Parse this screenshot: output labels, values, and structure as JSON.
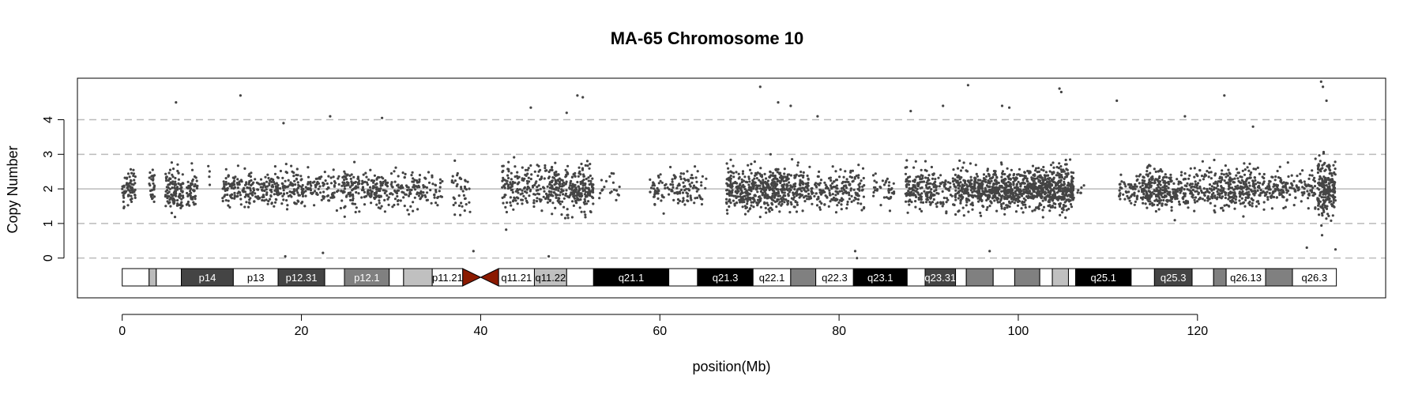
{
  "chart_data": {
    "type": "scatter",
    "title": "MA-65  Chromosome 10",
    "xlabel": "position(Mb)",
    "ylabel": "Copy Number",
    "xlim": [
      -5,
      141
    ],
    "ylim": [
      -1.15,
      5.2
    ],
    "xticks": [
      0,
      20,
      40,
      60,
      80,
      100,
      120
    ],
    "yticks": [
      0,
      1,
      2,
      3,
      4
    ],
    "reference_line": 2,
    "dashed_lines": [
      0,
      1,
      3,
      4
    ],
    "point_color": "#444444",
    "ideogram": {
      "length_mb": 135.5,
      "centromere": [
        38.0,
        42.0
      ],
      "centromere_color": "#8b1a00",
      "bands": [
        {
          "start": 0.0,
          "end": 3.0,
          "color": "#ffffff",
          "label": ""
        },
        {
          "start": 3.0,
          "end": 3.8,
          "color": "#bbbbbb",
          "label": ""
        },
        {
          "start": 3.8,
          "end": 6.6,
          "color": "#ffffff",
          "label": ""
        },
        {
          "start": 6.6,
          "end": 12.4,
          "color": "#444444",
          "label": "p14"
        },
        {
          "start": 12.4,
          "end": 17.4,
          "color": "#ffffff",
          "label": "p13"
        },
        {
          "start": 17.4,
          "end": 22.6,
          "color": "#444444",
          "label": "p12.31"
        },
        {
          "start": 22.6,
          "end": 24.8,
          "color": "#ffffff",
          "label": ""
        },
        {
          "start": 24.8,
          "end": 29.8,
          "color": "#808080",
          "label": "p12.1"
        },
        {
          "start": 29.8,
          "end": 31.4,
          "color": "#ffffff",
          "label": ""
        },
        {
          "start": 31.4,
          "end": 34.6,
          "color": "#c0c0c0",
          "label": ""
        },
        {
          "start": 34.6,
          "end": 38.0,
          "color": "#ffffff",
          "label": "p11.21"
        },
        {
          "start": 42.0,
          "end": 46.0,
          "color": "#ffffff",
          "label": "q11.21"
        },
        {
          "start": 46.0,
          "end": 49.6,
          "color": "#c0c0c0",
          "label": "q11.22"
        },
        {
          "start": 49.6,
          "end": 52.6,
          "color": "#ffffff",
          "label": ""
        },
        {
          "start": 52.6,
          "end": 61.0,
          "color": "#000000",
          "label": "q21.1"
        },
        {
          "start": 61.0,
          "end": 64.2,
          "color": "#ffffff",
          "label": ""
        },
        {
          "start": 64.2,
          "end": 70.4,
          "color": "#000000",
          "label": "q21.3"
        },
        {
          "start": 70.4,
          "end": 74.6,
          "color": "#ffffff",
          "label": "q22.1"
        },
        {
          "start": 74.6,
          "end": 77.4,
          "color": "#808080",
          "label": ""
        },
        {
          "start": 77.4,
          "end": 81.6,
          "color": "#ffffff",
          "label": "q22.3"
        },
        {
          "start": 81.6,
          "end": 87.6,
          "color": "#000000",
          "label": "q23.1"
        },
        {
          "start": 87.6,
          "end": 89.6,
          "color": "#ffffff",
          "label": ""
        },
        {
          "start": 89.6,
          "end": 93.0,
          "color": "#444444",
          "label": "q23.31"
        },
        {
          "start": 93.0,
          "end": 94.2,
          "color": "#ffffff",
          "label": ""
        },
        {
          "start": 94.2,
          "end": 97.2,
          "color": "#808080",
          "label": ""
        },
        {
          "start": 97.2,
          "end": 99.6,
          "color": "#ffffff",
          "label": ""
        },
        {
          "start": 99.6,
          "end": 102.4,
          "color": "#808080",
          "label": ""
        },
        {
          "start": 102.4,
          "end": 103.8,
          "color": "#ffffff",
          "label": ""
        },
        {
          "start": 103.8,
          "end": 105.6,
          "color": "#c0c0c0",
          "label": ""
        },
        {
          "start": 105.6,
          "end": 106.4,
          "color": "#ffffff",
          "label": ""
        },
        {
          "start": 106.4,
          "end": 112.6,
          "color": "#000000",
          "label": "q25.1"
        },
        {
          "start": 112.6,
          "end": 115.2,
          "color": "#ffffff",
          "label": ""
        },
        {
          "start": 115.2,
          "end": 119.4,
          "color": "#444444",
          "label": "q25.3"
        },
        {
          "start": 119.4,
          "end": 121.8,
          "color": "#ffffff",
          "label": ""
        },
        {
          "start": 121.8,
          "end": 123.2,
          "color": "#808080",
          "label": ""
        },
        {
          "start": 123.2,
          "end": 127.6,
          "color": "#ffffff",
          "label": "q26.13"
        },
        {
          "start": 127.6,
          "end": 130.6,
          "color": "#808080",
          "label": ""
        },
        {
          "start": 130.6,
          "end": 135.5,
          "color": "#ffffff",
          "label": "q26.3"
        }
      ]
    },
    "clusters": [
      {
        "x": [
          0,
          1.5
        ],
        "n": 70,
        "spread": 0.5
      },
      {
        "x": [
          3,
          3.6
        ],
        "n": 30,
        "spread": 0.5
      },
      {
        "x": [
          4.8,
          6.8
        ],
        "n": 120,
        "spread": 0.55
      },
      {
        "x": [
          7.2,
          8.4
        ],
        "n": 50,
        "spread": 0.5
      },
      {
        "x": [
          9.4,
          9.8
        ],
        "n": 4,
        "spread": 0.6
      },
      {
        "x": [
          11.2,
          16.6
        ],
        "n": 170,
        "spread": 0.5
      },
      {
        "x": [
          16.6,
          20.4
        ],
        "n": 130,
        "spread": 0.5
      },
      {
        "x": [
          20.4,
          24.6
        ],
        "n": 90,
        "spread": 0.45
      },
      {
        "x": [
          24.6,
          29.6
        ],
        "n": 180,
        "spread": 0.5
      },
      {
        "x": [
          29.6,
          33.4
        ],
        "n": 100,
        "spread": 0.45
      },
      {
        "x": [
          33.4,
          35.8
        ],
        "n": 40,
        "spread": 0.45
      },
      {
        "x": [
          36.8,
          39.0
        ],
        "n": 40,
        "spread": 0.6
      },
      {
        "x": [
          42.4,
          44.6
        ],
        "n": 80,
        "spread": 0.6
      },
      {
        "x": [
          44.6,
          47.6
        ],
        "n": 90,
        "spread": 0.55
      },
      {
        "x": [
          47.6,
          52.6
        ],
        "n": 260,
        "spread": 0.6
      },
      {
        "x": [
          53.2,
          55.6
        ],
        "n": 20,
        "spread": 0.4
      },
      {
        "x": [
          58.8,
          64.2
        ],
        "n": 120,
        "spread": 0.45
      },
      {
        "x": [
          64.2,
          65.2
        ],
        "n": 12,
        "spread": 0.45
      },
      {
        "x": [
          67.4,
          76.0
        ],
        "n": 520,
        "spread": 0.55
      },
      {
        "x": [
          76.0,
          79.4
        ],
        "n": 100,
        "spread": 0.5
      },
      {
        "x": [
          79.4,
          82.8
        ],
        "n": 110,
        "spread": 0.55
      },
      {
        "x": [
          83.8,
          86.2
        ],
        "n": 40,
        "spread": 0.45
      },
      {
        "x": [
          87.4,
          90.6
        ],
        "n": 150,
        "spread": 0.55
      },
      {
        "x": [
          90.6,
          92.6
        ],
        "n": 50,
        "spread": 0.45
      },
      {
        "x": [
          92.6,
          96.6
        ],
        "n": 240,
        "spread": 0.5
      },
      {
        "x": [
          96.6,
          102.2
        ],
        "n": 430,
        "spread": 0.5
      },
      {
        "x": [
          102.2,
          106.2
        ],
        "n": 400,
        "spread": 0.55
      },
      {
        "x": [
          106.6,
          107.4
        ],
        "n": 6,
        "spread": 0.4
      },
      {
        "x": [
          111.2,
          113.6
        ],
        "n": 60,
        "spread": 0.4
      },
      {
        "x": [
          113.6,
          117.6
        ],
        "n": 220,
        "spread": 0.5
      },
      {
        "x": [
          117.6,
          120.2
        ],
        "n": 90,
        "spread": 0.5
      },
      {
        "x": [
          120.2,
          122.4
        ],
        "n": 70,
        "spread": 0.5
      },
      {
        "x": [
          122.4,
          126.4
        ],
        "n": 200,
        "spread": 0.55
      },
      {
        "x": [
          126.4,
          130.2
        ],
        "n": 130,
        "spread": 0.5
      },
      {
        "x": [
          130.2,
          132.2
        ],
        "n": 40,
        "spread": 0.5
      },
      {
        "x": [
          132.2,
          133.2
        ],
        "n": 30,
        "spread": 0.6
      },
      {
        "x": [
          133.4,
          135.4
        ],
        "n": 220,
        "spread": 0.7
      }
    ],
    "outliers": [
      [
        6.0,
        4.5
      ],
      [
        13.2,
        4.7
      ],
      [
        18.0,
        3.9
      ],
      [
        18.2,
        0.05
      ],
      [
        23.2,
        4.1
      ],
      [
        29.0,
        4.05
      ],
      [
        22.4,
        0.15
      ],
      [
        39.2,
        0.2
      ],
      [
        45.6,
        4.35
      ],
      [
        50.8,
        4.7
      ],
      [
        51.4,
        4.65
      ],
      [
        49.6,
        4.2
      ],
      [
        47.6,
        0.05
      ],
      [
        71.2,
        4.95
      ],
      [
        73.2,
        4.5
      ],
      [
        74.6,
        4.4
      ],
      [
        77.6,
        4.1
      ],
      [
        82.0,
        0.0
      ],
      [
        81.8,
        0.2
      ],
      [
        88.0,
        4.25
      ],
      [
        91.6,
        4.4
      ],
      [
        94.4,
        5.0
      ],
      [
        98.2,
        4.4
      ],
      [
        99.0,
        4.35
      ],
      [
        96.8,
        0.2
      ],
      [
        104.6,
        4.9
      ],
      [
        104.8,
        4.8
      ],
      [
        111.0,
        4.55
      ],
      [
        118.6,
        4.1
      ],
      [
        123.0,
        4.7
      ],
      [
        126.2,
        3.8
      ],
      [
        133.8,
        5.1
      ],
      [
        134.0,
        4.95
      ],
      [
        134.4,
        4.55
      ],
      [
        132.2,
        0.3
      ],
      [
        135.4,
        0.25
      ]
    ]
  }
}
